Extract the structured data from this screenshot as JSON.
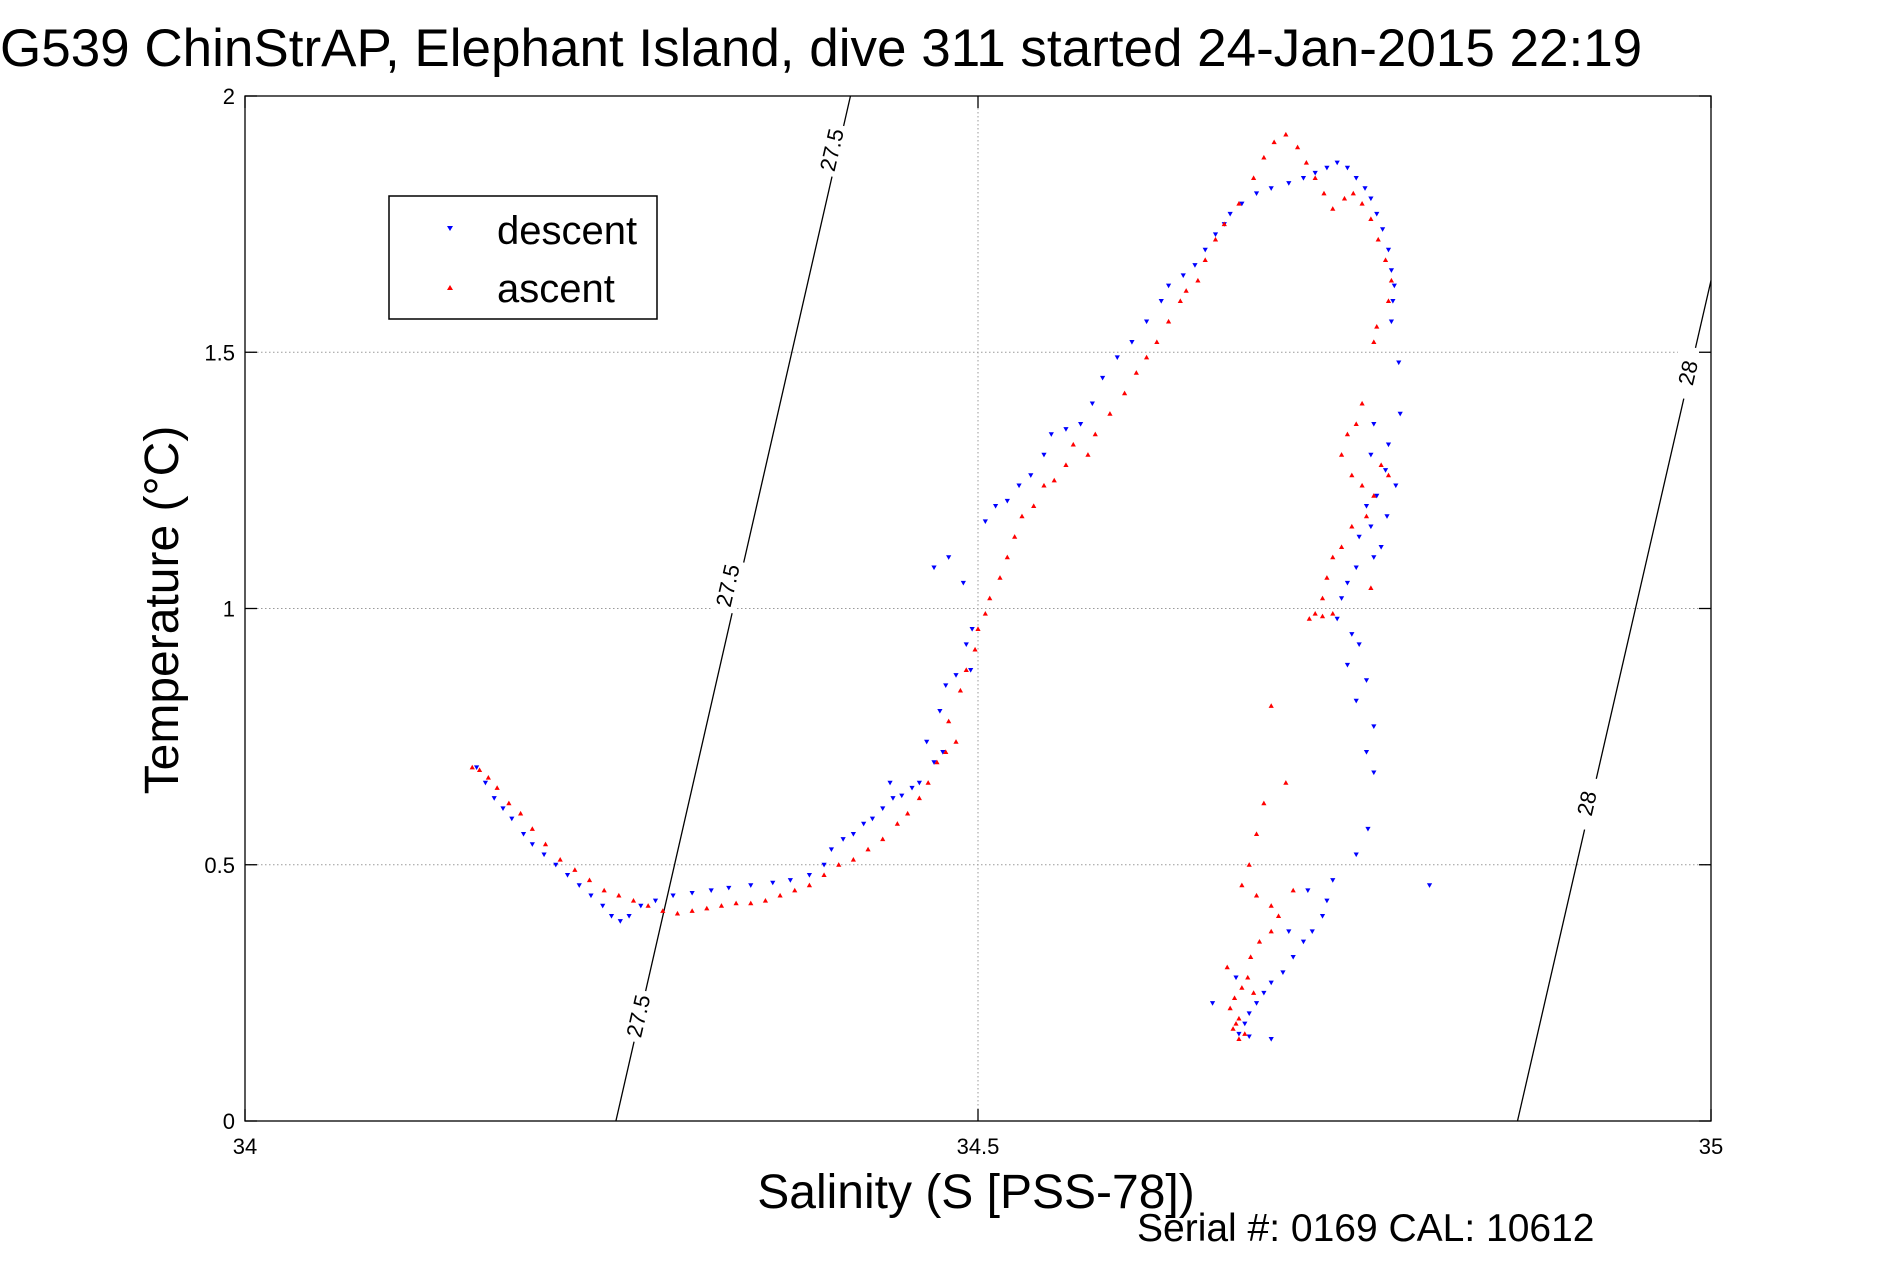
{
  "chart_data": {
    "type": "scatter",
    "title": "G539 ChinStrAP, Elephant Island, dive 311 started 24-Jan-2015 22:19",
    "xlabel": "Salinity (S [PSS-78])",
    "ylabel": "Temperature (°C)",
    "xlim": [
      34,
      35
    ],
    "ylim": [
      0,
      2
    ],
    "x_ticks": [
      34,
      34.5,
      35
    ],
    "x_tick_labels": [
      "34",
      "34.5",
      "35"
    ],
    "y_ticks": [
      0,
      0.5,
      1,
      1.5,
      2
    ],
    "y_tick_labels": [
      "0",
      "0.5",
      "1",
      "1.5",
      "2"
    ],
    "grid": true,
    "legend_position": "top-left",
    "footer": "Serial #: 0169 CAL: 10612",
    "series": [
      {
        "name": "descent",
        "marker": "triangle-down",
        "color": "#0000ff",
        "points": [
          [
            34.158,
            0.69
          ],
          [
            34.164,
            0.66
          ],
          [
            34.17,
            0.63
          ],
          [
            34.176,
            0.61
          ],
          [
            34.182,
            0.59
          ],
          [
            34.19,
            0.56
          ],
          [
            34.196,
            0.54
          ],
          [
            34.204,
            0.52
          ],
          [
            34.212,
            0.5
          ],
          [
            34.22,
            0.48
          ],
          [
            34.228,
            0.46
          ],
          [
            34.236,
            0.44
          ],
          [
            34.244,
            0.42
          ],
          [
            34.25,
            0.4
          ],
          [
            34.256,
            0.39
          ],
          [
            34.262,
            0.4
          ],
          [
            34.27,
            0.42
          ],
          [
            34.28,
            0.43
          ],
          [
            34.292,
            0.44
          ],
          [
            34.305,
            0.445
          ],
          [
            34.318,
            0.45
          ],
          [
            34.33,
            0.455
          ],
          [
            34.345,
            0.46
          ],
          [
            34.36,
            0.465
          ],
          [
            34.372,
            0.47
          ],
          [
            34.385,
            0.48
          ],
          [
            34.395,
            0.5
          ],
          [
            34.4,
            0.53
          ],
          [
            34.408,
            0.55
          ],
          [
            34.415,
            0.56
          ],
          [
            34.422,
            0.58
          ],
          [
            34.428,
            0.59
          ],
          [
            34.435,
            0.61
          ],
          [
            34.442,
            0.63
          ],
          [
            34.448,
            0.635
          ],
          [
            34.455,
            0.65
          ],
          [
            34.46,
            0.66
          ],
          [
            34.47,
            0.7
          ],
          [
            34.476,
            0.72
          ],
          [
            34.44,
            0.66
          ],
          [
            34.465,
            0.74
          ],
          [
            34.474,
            0.8
          ],
          [
            34.478,
            0.85
          ],
          [
            34.485,
            0.87
          ],
          [
            34.492,
            0.93
          ],
          [
            34.496,
            0.96
          ],
          [
            34.495,
            0.88
          ],
          [
            34.47,
            1.08
          ],
          [
            34.48,
            1.1
          ],
          [
            34.49,
            1.05
          ],
          [
            34.505,
            1.17
          ],
          [
            34.512,
            1.2
          ],
          [
            34.52,
            1.21
          ],
          [
            34.528,
            1.24
          ],
          [
            34.536,
            1.26
          ],
          [
            34.545,
            1.3
          ],
          [
            34.55,
            1.34
          ],
          [
            34.56,
            1.35
          ],
          [
            34.57,
            1.36
          ],
          [
            34.578,
            1.4
          ],
          [
            34.585,
            1.45
          ],
          [
            34.595,
            1.49
          ],
          [
            34.605,
            1.52
          ],
          [
            34.615,
            1.56
          ],
          [
            34.625,
            1.6
          ],
          [
            34.63,
            1.63
          ],
          [
            34.64,
            1.65
          ],
          [
            34.648,
            1.67
          ],
          [
            34.655,
            1.7
          ],
          [
            34.662,
            1.73
          ],
          [
            34.668,
            1.75
          ],
          [
            34.672,
            1.77
          ],
          [
            34.68,
            1.79
          ],
          [
            34.69,
            1.81
          ],
          [
            34.7,
            1.82
          ],
          [
            34.712,
            1.83
          ],
          [
            34.722,
            1.84
          ],
          [
            34.73,
            1.85
          ],
          [
            34.738,
            1.86
          ],
          [
            34.745,
            1.87
          ],
          [
            34.752,
            1.86
          ],
          [
            34.758,
            1.84
          ],
          [
            34.764,
            1.82
          ],
          [
            34.768,
            1.8
          ],
          [
            34.772,
            1.77
          ],
          [
            34.776,
            1.74
          ],
          [
            34.78,
            1.7
          ],
          [
            34.782,
            1.66
          ],
          [
            34.784,
            1.63
          ],
          [
            34.783,
            1.6
          ],
          [
            34.782,
            1.56
          ],
          [
            34.787,
            1.48
          ],
          [
            34.788,
            1.38
          ],
          [
            34.77,
            1.36
          ],
          [
            34.78,
            1.32
          ],
          [
            34.768,
            1.3
          ],
          [
            34.778,
            1.27
          ],
          [
            34.785,
            1.24
          ],
          [
            34.772,
            1.22
          ],
          [
            34.765,
            1.2
          ],
          [
            34.779,
            1.18
          ],
          [
            34.768,
            1.16
          ],
          [
            34.76,
            1.14
          ],
          [
            34.775,
            1.12
          ],
          [
            34.77,
            1.1
          ],
          [
            34.758,
            1.08
          ],
          [
            34.752,
            1.05
          ],
          [
            34.748,
            1.02
          ],
          [
            34.745,
            0.98
          ],
          [
            34.755,
            0.95
          ],
          [
            34.76,
            0.93
          ],
          [
            34.752,
            0.89
          ],
          [
            34.765,
            0.86
          ],
          [
            34.758,
            0.82
          ],
          [
            34.77,
            0.77
          ],
          [
            34.765,
            0.72
          ],
          [
            34.77,
            0.68
          ],
          [
            34.766,
            0.57
          ],
          [
            34.758,
            0.52
          ],
          [
            34.742,
            0.47
          ],
          [
            34.738,
            0.43
          ],
          [
            34.735,
            0.4
          ],
          [
            34.728,
            0.37
          ],
          [
            34.722,
            0.35
          ],
          [
            34.715,
            0.32
          ],
          [
            34.708,
            0.29
          ],
          [
            34.7,
            0.27
          ],
          [
            34.695,
            0.25
          ],
          [
            34.69,
            0.23
          ],
          [
            34.685,
            0.21
          ],
          [
            34.682,
            0.19
          ],
          [
            34.678,
            0.17
          ],
          [
            34.7,
            0.16
          ],
          [
            34.685,
            0.165
          ],
          [
            34.66,
            0.23
          ],
          [
            34.676,
            0.28
          ],
          [
            34.712,
            0.37
          ],
          [
            34.725,
            0.45
          ],
          [
            34.808,
            0.46
          ]
        ]
      },
      {
        "name": "ascent",
        "marker": "triangle-up",
        "color": "#ff0000",
        "points": [
          [
            34.155,
            0.69
          ],
          [
            34.16,
            0.685
          ],
          [
            34.166,
            0.67
          ],
          [
            34.172,
            0.65
          ],
          [
            34.18,
            0.62
          ],
          [
            34.188,
            0.6
          ],
          [
            34.196,
            0.57
          ],
          [
            34.205,
            0.54
          ],
          [
            34.215,
            0.51
          ],
          [
            34.225,
            0.49
          ],
          [
            34.235,
            0.47
          ],
          [
            34.245,
            0.45
          ],
          [
            34.255,
            0.44
          ],
          [
            34.265,
            0.43
          ],
          [
            34.275,
            0.42
          ],
          [
            34.285,
            0.41
          ],
          [
            34.295,
            0.405
          ],
          [
            34.305,
            0.41
          ],
          [
            34.315,
            0.415
          ],
          [
            34.325,
            0.42
          ],
          [
            34.335,
            0.425
          ],
          [
            34.345,
            0.425
          ],
          [
            34.355,
            0.43
          ],
          [
            34.365,
            0.44
          ],
          [
            34.375,
            0.45
          ],
          [
            34.385,
            0.46
          ],
          [
            34.395,
            0.48
          ],
          [
            34.405,
            0.5
          ],
          [
            34.415,
            0.51
          ],
          [
            34.425,
            0.53
          ],
          [
            34.435,
            0.55
          ],
          [
            34.445,
            0.58
          ],
          [
            34.452,
            0.6
          ],
          [
            34.46,
            0.63
          ],
          [
            34.466,
            0.66
          ],
          [
            34.472,
            0.7
          ],
          [
            34.478,
            0.72
          ],
          [
            34.485,
            0.74
          ],
          [
            34.48,
            0.78
          ],
          [
            34.488,
            0.84
          ],
          [
            34.492,
            0.88
          ],
          [
            34.498,
            0.92
          ],
          [
            34.5,
            0.96
          ],
          [
            34.505,
            0.99
          ],
          [
            34.508,
            1.02
          ],
          [
            34.515,
            1.06
          ],
          [
            34.52,
            1.1
          ],
          [
            34.525,
            1.14
          ],
          [
            34.53,
            1.18
          ],
          [
            34.538,
            1.2
          ],
          [
            34.545,
            1.24
          ],
          [
            34.552,
            1.25
          ],
          [
            34.56,
            1.28
          ],
          [
            34.565,
            1.32
          ],
          [
            34.575,
            1.3
          ],
          [
            34.58,
            1.34
          ],
          [
            34.59,
            1.38
          ],
          [
            34.6,
            1.42
          ],
          [
            34.608,
            1.46
          ],
          [
            34.615,
            1.49
          ],
          [
            34.622,
            1.52
          ],
          [
            34.63,
            1.56
          ],
          [
            34.638,
            1.6
          ],
          [
            34.642,
            1.62
          ],
          [
            34.65,
            1.64
          ],
          [
            34.655,
            1.68
          ],
          [
            34.662,
            1.72
          ],
          [
            34.668,
            1.75
          ],
          [
            34.678,
            1.79
          ],
          [
            34.688,
            1.84
          ],
          [
            34.695,
            1.88
          ],
          [
            34.702,
            1.91
          ],
          [
            34.71,
            1.925
          ],
          [
            34.718,
            1.9
          ],
          [
            34.724,
            1.87
          ],
          [
            34.73,
            1.84
          ],
          [
            34.736,
            1.81
          ],
          [
            34.742,
            1.78
          ],
          [
            34.75,
            1.8
          ],
          [
            34.756,
            1.81
          ],
          [
            34.762,
            1.79
          ],
          [
            34.768,
            1.76
          ],
          [
            34.773,
            1.72
          ],
          [
            34.778,
            1.68
          ],
          [
            34.782,
            1.64
          ],
          [
            34.78,
            1.6
          ],
          [
            34.772,
            1.55
          ],
          [
            34.77,
            1.52
          ],
          [
            34.762,
            1.4
          ],
          [
            34.758,
            1.36
          ],
          [
            34.752,
            1.34
          ],
          [
            34.748,
            1.3
          ],
          [
            34.755,
            1.26
          ],
          [
            34.762,
            1.24
          ],
          [
            34.77,
            1.22
          ],
          [
            34.775,
            1.28
          ],
          [
            34.78,
            1.26
          ],
          [
            34.765,
            1.18
          ],
          [
            34.755,
            1.16
          ],
          [
            34.748,
            1.12
          ],
          [
            34.742,
            1.1
          ],
          [
            34.738,
            1.06
          ],
          [
            34.735,
            1.02
          ],
          [
            34.73,
            0.99
          ],
          [
            34.726,
            0.98
          ],
          [
            34.735,
            0.985
          ],
          [
            34.742,
            0.99
          ],
          [
            34.768,
            1.04
          ],
          [
            34.7,
            0.81
          ],
          [
            34.71,
            0.66
          ],
          [
            34.695,
            0.62
          ],
          [
            34.69,
            0.56
          ],
          [
            34.685,
            0.5
          ],
          [
            34.68,
            0.46
          ],
          [
            34.69,
            0.44
          ],
          [
            34.7,
            0.42
          ],
          [
            34.705,
            0.4
          ],
          [
            34.7,
            0.37
          ],
          [
            34.692,
            0.35
          ],
          [
            34.686,
            0.32
          ],
          [
            34.684,
            0.28
          ],
          [
            34.68,
            0.26
          ],
          [
            34.675,
            0.24
          ],
          [
            34.672,
            0.22
          ],
          [
            34.678,
            0.2
          ],
          [
            34.674,
            0.18
          ],
          [
            34.682,
            0.17
          ],
          [
            34.678,
            0.16
          ],
          [
            34.676,
            0.19
          ],
          [
            34.688,
            0.25
          ],
          [
            34.67,
            0.3
          ],
          [
            34.715,
            0.45
          ]
        ]
      }
    ],
    "isopycnals": [
      {
        "value": 27.5,
        "points": [
          [
            34.253,
            0.0
          ],
          [
            34.413,
            2.0
          ]
        ],
        "labels": [
          {
            "text": "27.5",
            "x": 34.268,
            "y": 0.205
          },
          {
            "text": "27.5",
            "x": 34.329,
            "y": 1.045
          },
          {
            "text": "27.5",
            "x": 34.4,
            "y": 1.895
          }
        ]
      },
      {
        "value": 28,
        "points": [
          [
            34.868,
            0.0
          ],
          [
            35.0,
            1.64
          ]
        ],
        "labels": [
          {
            "text": "28",
            "x": 34.915,
            "y": 0.62
          },
          {
            "text": "28",
            "x": 34.984,
            "y": 1.46
          }
        ]
      }
    ]
  }
}
